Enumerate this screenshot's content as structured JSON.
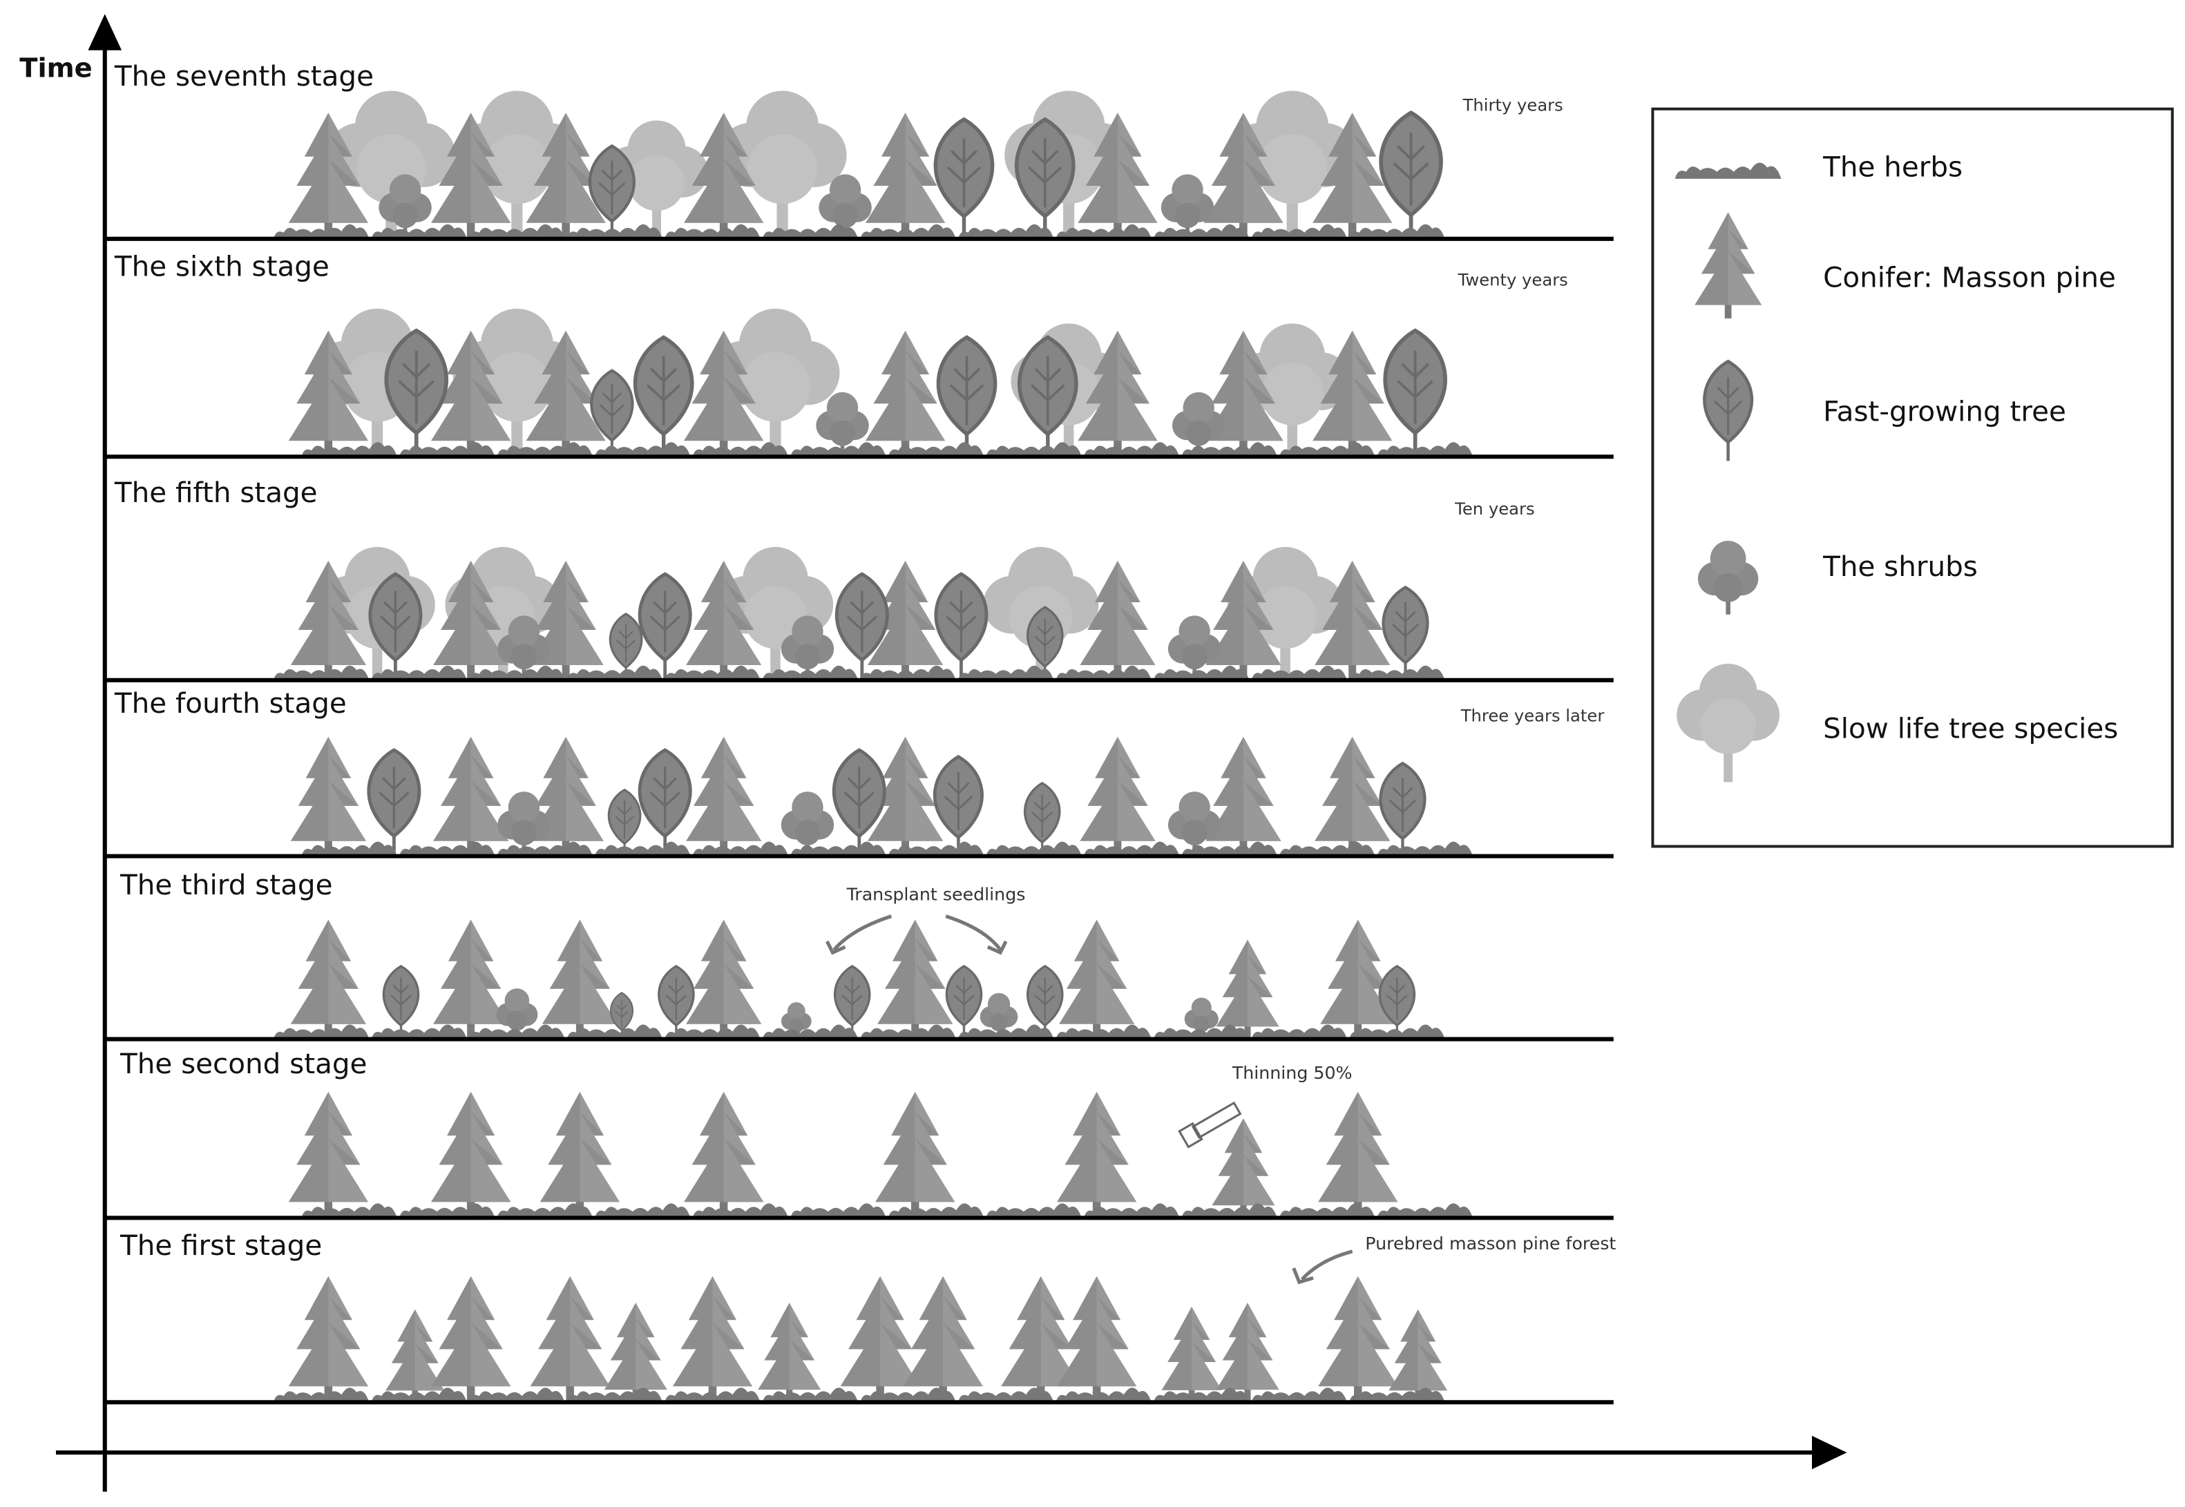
{
  "axis": {
    "y_label": "Time"
  },
  "stages": [
    {
      "label": "The seventh stage",
      "note": "Thirty years"
    },
    {
      "label": "The sixth stage",
      "note": "Twenty years"
    },
    {
      "label": "The fifth stage",
      "note": "Ten years"
    },
    {
      "label": "The fourth stage",
      "note": "Three years later"
    },
    {
      "label": "The third stage"
    },
    {
      "label": "The second stage"
    },
    {
      "label": "The first stage"
    }
  ],
  "annotations": {
    "transplant": "Transplant seedlings",
    "thinning": "Thinning 50%",
    "purebred": "Purebred masson pine forest"
  },
  "legend": [
    {
      "label": "The herbs"
    },
    {
      "label": "Conifer: Masson pine"
    },
    {
      "label": "Fast-growing tree"
    },
    {
      "label": "The shrubs"
    },
    {
      "label": "Slow life tree species"
    }
  ]
}
